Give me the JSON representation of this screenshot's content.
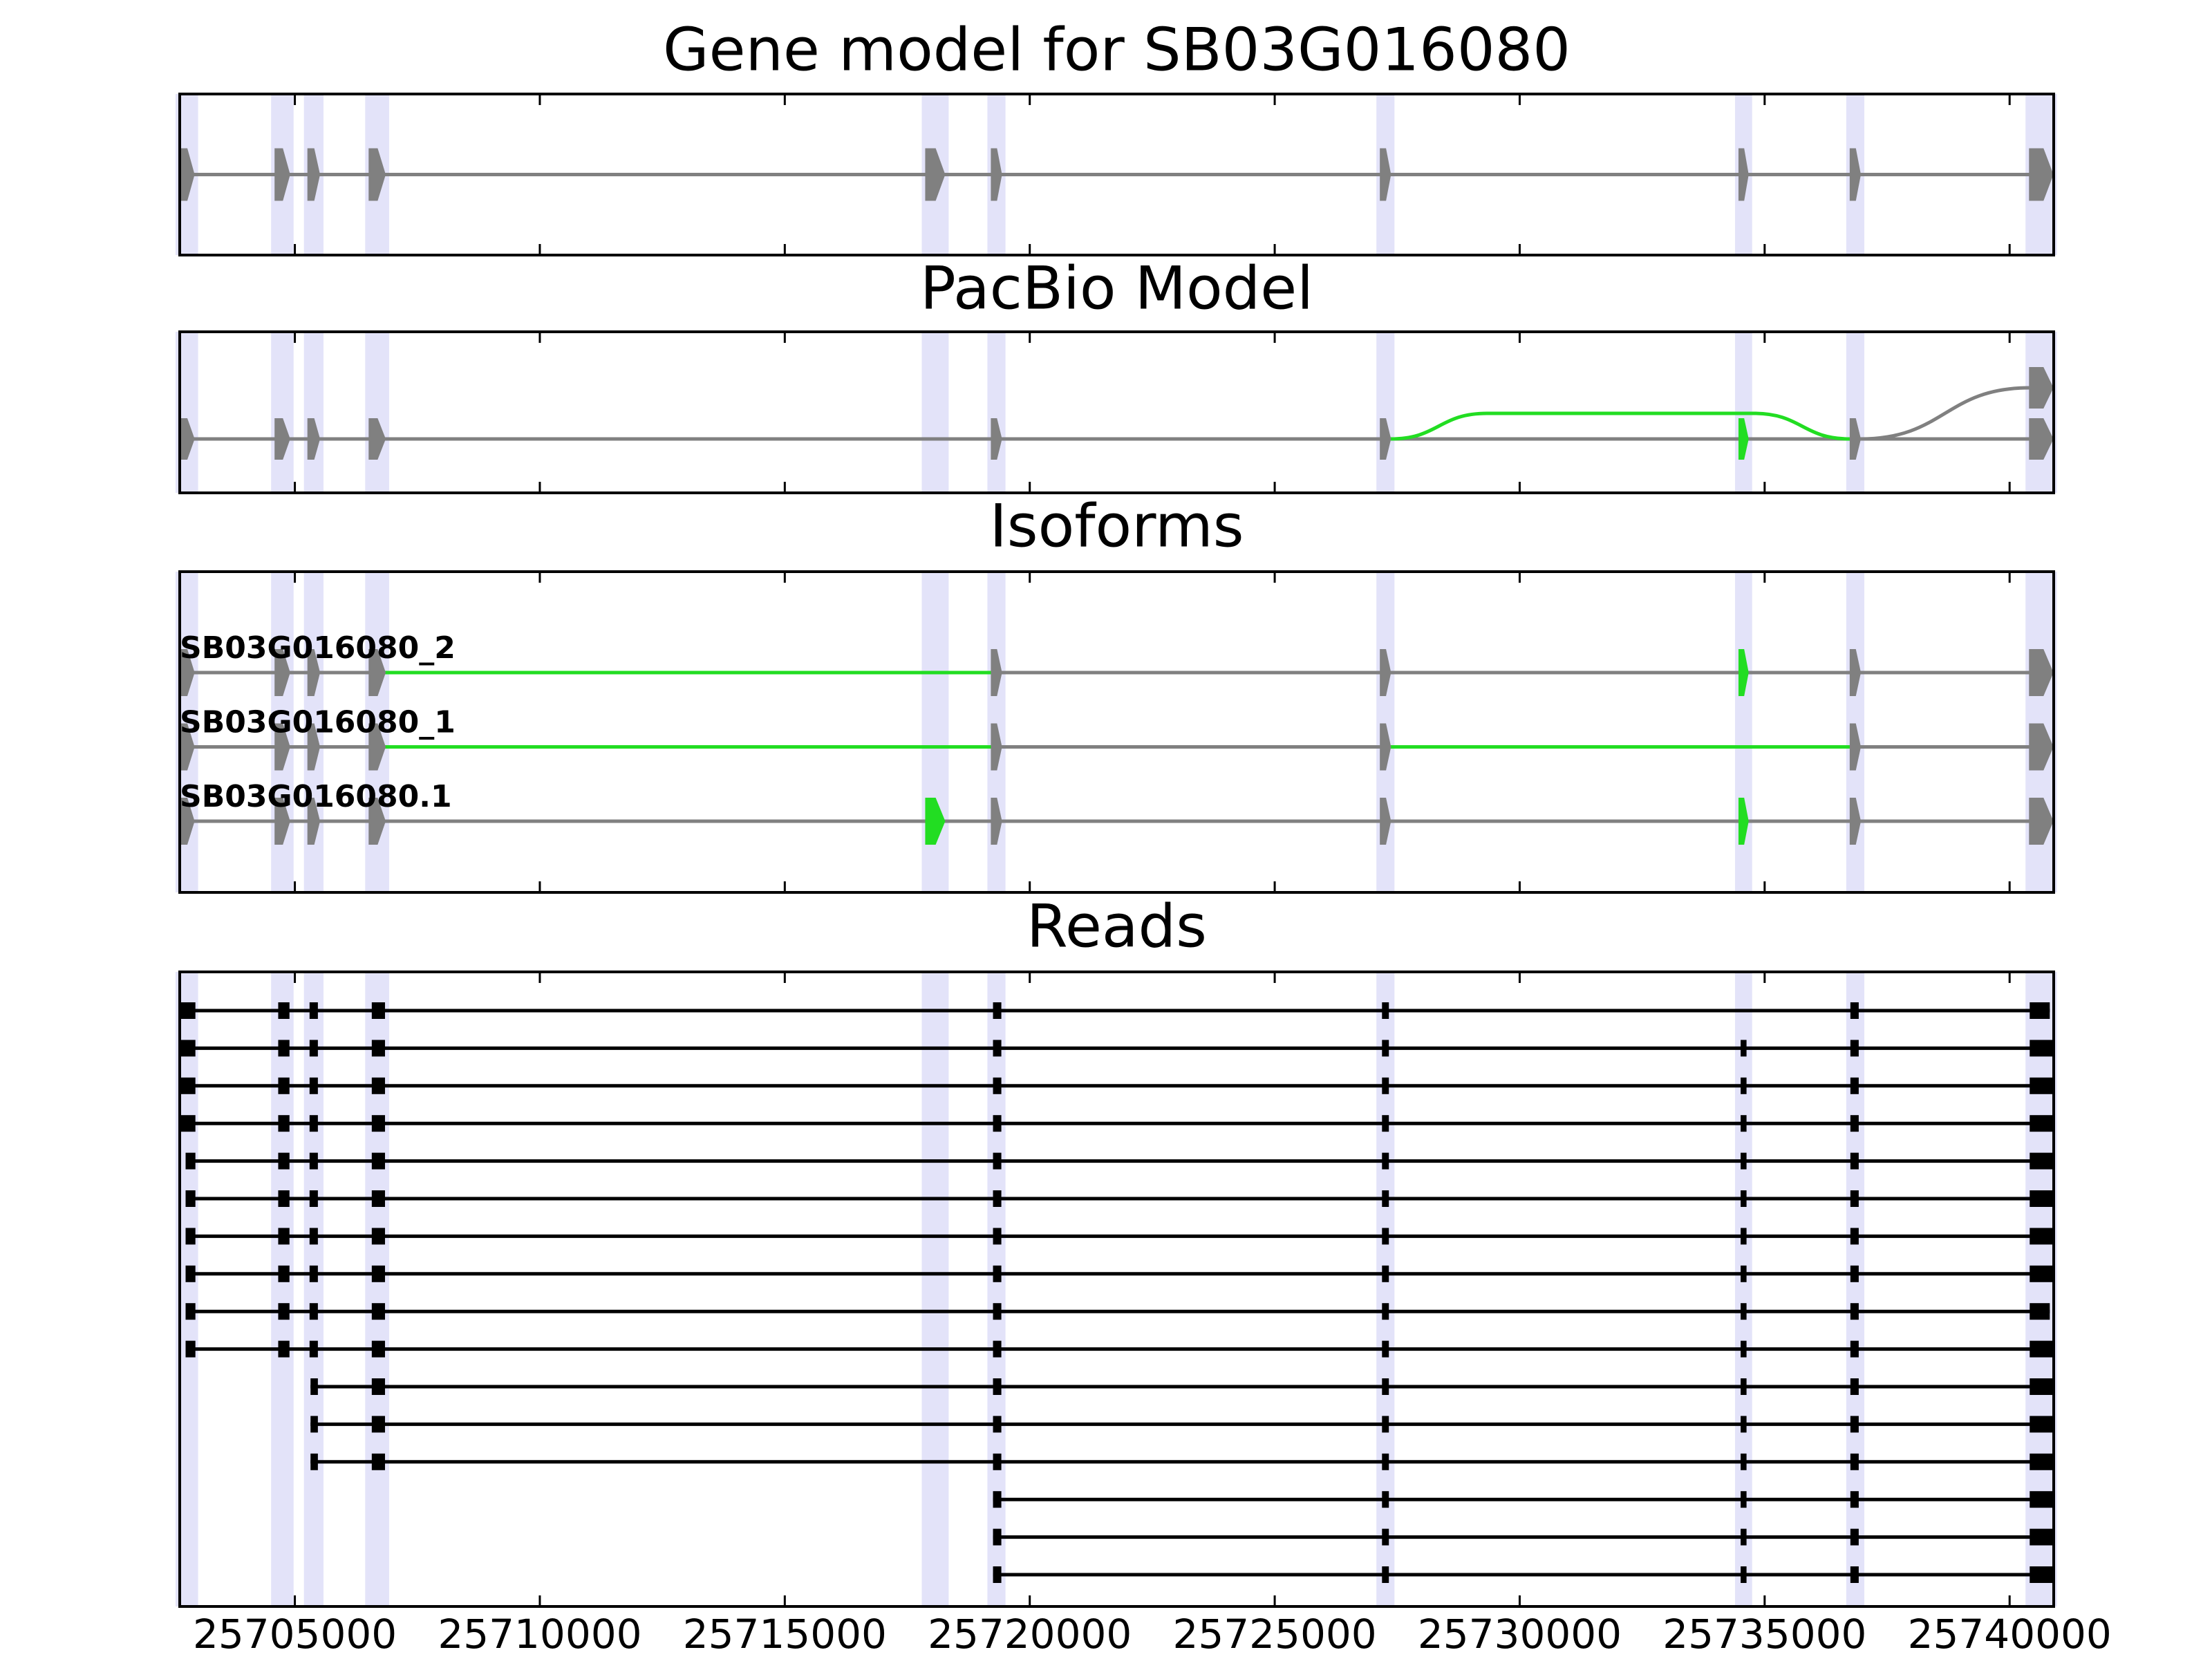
{
  "chart_data": [
    {
      "type": "gene_model",
      "title": "Gene model for SB03G016080",
      "xlim": [
        25702650,
        25740900
      ],
      "xticks": [
        25705000,
        25710000,
        25715000,
        25720000,
        25725000,
        25730000,
        25735000,
        25740000
      ],
      "exons": [
        [
          25702650,
          25702940
        ],
        [
          25704600,
          25704890
        ],
        [
          25705270,
          25705500
        ],
        [
          25706520,
          25706840
        ],
        [
          25717880,
          25718260
        ],
        [
          25719220,
          25719420
        ],
        [
          25727160,
          25727360
        ],
        [
          25734480,
          25734660
        ],
        [
          25736750,
          25736950
        ],
        [
          25740410,
          25740880
        ]
      ],
      "color": "#808080",
      "band_color": "#dcdcf8"
    },
    {
      "type": "splice_graph",
      "title": "PacBio Model",
      "xlim": [
        25702650,
        25740900
      ],
      "xticks": [
        25705000,
        25710000,
        25715000,
        25720000,
        25725000,
        25730000,
        25735000,
        25740000
      ],
      "exons": [
        [
          25702650,
          25702940
        ],
        [
          25704600,
          25704890
        ],
        [
          25705270,
          25705500
        ],
        [
          25706520,
          25706840
        ],
        [
          25719220,
          25719420
        ],
        [
          25727160,
          25727360
        ],
        [
          25734480,
          25734660
        ],
        [
          25736750,
          25736950
        ],
        [
          25740410,
          25740880
        ],
        [
          25740410,
          25740880
        ]
      ],
      "lanes": [
        0,
        0,
        0,
        0,
        0,
        0,
        0,
        0,
        0,
        1
      ],
      "edges": [
        [
          0,
          1
        ],
        [
          1,
          2
        ],
        [
          2,
          3
        ],
        [
          3,
          4
        ],
        [
          4,
          5
        ],
        [
          5,
          6
        ],
        [
          6,
          7
        ],
        [
          7,
          8
        ],
        [
          5,
          7
        ],
        [
          7,
          9
        ]
      ],
      "highlight_exons": [
        6
      ],
      "highlight_edges": [
        8
      ],
      "color": "#808080",
      "highlight_color": "#22dd22"
    },
    {
      "type": "isoforms",
      "title": "Isoforms",
      "xlim": [
        25702650,
        25740900
      ],
      "xticks": [
        25705000,
        25710000,
        25715000,
        25720000,
        25725000,
        25730000,
        25735000,
        25740000
      ],
      "isoforms": [
        {
          "name": "SB03G016080_2",
          "exons": [
            [
              25702650,
              25702940
            ],
            [
              25704600,
              25704890
            ],
            [
              25705270,
              25705500
            ],
            [
              25706520,
              25706840
            ],
            [
              25719220,
              25719420
            ],
            [
              25727160,
              25727360
            ],
            [
              25734480,
              25734660
            ],
            [
              25736750,
              25736950
            ],
            [
              25740410,
              25740880
            ]
          ],
          "highlight_exons": [
            6
          ],
          "highlight_introns": [
            3
          ]
        },
        {
          "name": "SB03G016080_1",
          "exons": [
            [
              25702650,
              25702940
            ],
            [
              25704600,
              25704890
            ],
            [
              25705270,
              25705500
            ],
            [
              25706520,
              25706840
            ],
            [
              25719220,
              25719420
            ],
            [
              25727160,
              25727360
            ],
            [
              25736750,
              25736950
            ],
            [
              25740410,
              25740880
            ]
          ],
          "highlight_exons": [],
          "highlight_introns": [
            3,
            5
          ]
        },
        {
          "name": "SB03G016080.1",
          "exons": [
            [
              25702650,
              25702940
            ],
            [
              25704600,
              25704890
            ],
            [
              25705270,
              25705500
            ],
            [
              25706520,
              25706840
            ],
            [
              25717880,
              25718260
            ],
            [
              25719220,
              25719420
            ],
            [
              25727160,
              25727360
            ],
            [
              25734480,
              25734660
            ],
            [
              25736750,
              25736950
            ],
            [
              25740410,
              25740880
            ]
          ],
          "highlight_exons": [
            4,
            7
          ],
          "highlight_introns": []
        }
      ],
      "color": "#808080",
      "highlight_color": "#22dd22"
    },
    {
      "type": "reads",
      "title": "Reads",
      "xlim": [
        25702650,
        25740900
      ],
      "xticks": [
        25705000,
        25710000,
        25715000,
        25720000,
        25725000,
        25730000,
        25735000,
        25740000
      ],
      "show_xtick_labels": true,
      "color": "#000000",
      "reads": [
        [
          [
            25702650,
            25702970
          ],
          [
            25704660,
            25704890
          ],
          [
            25705300,
            25705470
          ],
          [
            25706570,
            25706840
          ],
          [
            25719250,
            25719420
          ],
          [
            25727190,
            25727330
          ],
          [
            25736750,
            25736920
          ],
          [
            25740410,
            25740820
          ]
        ],
        [
          [
            25702650,
            25702970
          ],
          [
            25704660,
            25704890
          ],
          [
            25705300,
            25705470
          ],
          [
            25706570,
            25706840
          ],
          [
            25719250,
            25719420
          ],
          [
            25727190,
            25727330
          ],
          [
            25734510,
            25734630
          ],
          [
            25736750,
            25736920
          ],
          [
            25740410,
            25740880
          ]
        ],
        [
          [
            25702650,
            25702970
          ],
          [
            25704660,
            25704890
          ],
          [
            25705300,
            25705470
          ],
          [
            25706570,
            25706840
          ],
          [
            25719250,
            25719420
          ],
          [
            25727190,
            25727330
          ],
          [
            25734510,
            25734630
          ],
          [
            25736750,
            25736920
          ],
          [
            25740410,
            25740880
          ]
        ],
        [
          [
            25702650,
            25702970
          ],
          [
            25704660,
            25704890
          ],
          [
            25705300,
            25705470
          ],
          [
            25706570,
            25706840
          ],
          [
            25719250,
            25719420
          ],
          [
            25727190,
            25727330
          ],
          [
            25734510,
            25734630
          ],
          [
            25736750,
            25736920
          ],
          [
            25740410,
            25740880
          ]
        ],
        [
          [
            25702770,
            25702970
          ],
          [
            25704660,
            25704890
          ],
          [
            25705300,
            25705470
          ],
          [
            25706570,
            25706840
          ],
          [
            25719250,
            25719420
          ],
          [
            25727190,
            25727330
          ],
          [
            25734510,
            25734630
          ],
          [
            25736750,
            25736920
          ],
          [
            25740410,
            25740880
          ]
        ],
        [
          [
            25702770,
            25702970
          ],
          [
            25704660,
            25704890
          ],
          [
            25705300,
            25705470
          ],
          [
            25706570,
            25706840
          ],
          [
            25719250,
            25719420
          ],
          [
            25727190,
            25727330
          ],
          [
            25734510,
            25734630
          ],
          [
            25736750,
            25736920
          ],
          [
            25740410,
            25740880
          ]
        ],
        [
          [
            25702770,
            25702970
          ],
          [
            25704660,
            25704890
          ],
          [
            25705300,
            25705470
          ],
          [
            25706570,
            25706840
          ],
          [
            25719250,
            25719420
          ],
          [
            25727190,
            25727330
          ],
          [
            25734510,
            25734630
          ],
          [
            25736750,
            25736920
          ],
          [
            25740410,
            25740880
          ]
        ],
        [
          [
            25702770,
            25702970
          ],
          [
            25704660,
            25704890
          ],
          [
            25705300,
            25705470
          ],
          [
            25706570,
            25706840
          ],
          [
            25719250,
            25719420
          ],
          [
            25727190,
            25727330
          ],
          [
            25734510,
            25734630
          ],
          [
            25736750,
            25736920
          ],
          [
            25740410,
            25740880
          ]
        ],
        [
          [
            25702770,
            25702970
          ],
          [
            25704660,
            25704890
          ],
          [
            25705300,
            25705470
          ],
          [
            25706570,
            25706840
          ],
          [
            25719250,
            25719420
          ],
          [
            25727190,
            25727330
          ],
          [
            25734510,
            25734630
          ],
          [
            25736750,
            25736920
          ],
          [
            25740410,
            25740820
          ]
        ],
        [
          [
            25702770,
            25702970
          ],
          [
            25704660,
            25704890
          ],
          [
            25705300,
            25705470
          ],
          [
            25706570,
            25706840
          ],
          [
            25719250,
            25719420
          ],
          [
            25727190,
            25727330
          ],
          [
            25734510,
            25734630
          ],
          [
            25736750,
            25736920
          ],
          [
            25740410,
            25740880
          ]
        ],
        [
          [
            25705320,
            25705470
          ],
          [
            25706570,
            25706840
          ],
          [
            25719250,
            25719420
          ],
          [
            25727190,
            25727330
          ],
          [
            25734510,
            25734630
          ],
          [
            25736750,
            25736920
          ],
          [
            25740410,
            25740880
          ]
        ],
        [
          [
            25705320,
            25705470
          ],
          [
            25706570,
            25706840
          ],
          [
            25719250,
            25719420
          ],
          [
            25727190,
            25727330
          ],
          [
            25734510,
            25734630
          ],
          [
            25736750,
            25736920
          ],
          [
            25740410,
            25740880
          ]
        ],
        [
          [
            25705320,
            25705470
          ],
          [
            25706570,
            25706840
          ],
          [
            25719250,
            25719420
          ],
          [
            25727190,
            25727330
          ],
          [
            25734510,
            25734630
          ],
          [
            25736750,
            25736920
          ],
          [
            25740410,
            25740880
          ]
        ],
        [
          [
            25719250,
            25719420
          ],
          [
            25727190,
            25727330
          ],
          [
            25734510,
            25734630
          ],
          [
            25736750,
            25736920
          ],
          [
            25740410,
            25740880
          ]
        ],
        [
          [
            25719250,
            25719420
          ],
          [
            25727190,
            25727330
          ],
          [
            25734510,
            25734630
          ],
          [
            25736750,
            25736920
          ],
          [
            25740410,
            25740880
          ]
        ],
        [
          [
            25719250,
            25719420
          ],
          [
            25727190,
            25727330
          ],
          [
            25734510,
            25734630
          ],
          [
            25736750,
            25736920
          ],
          [
            25740410,
            25740880
          ]
        ]
      ]
    }
  ]
}
